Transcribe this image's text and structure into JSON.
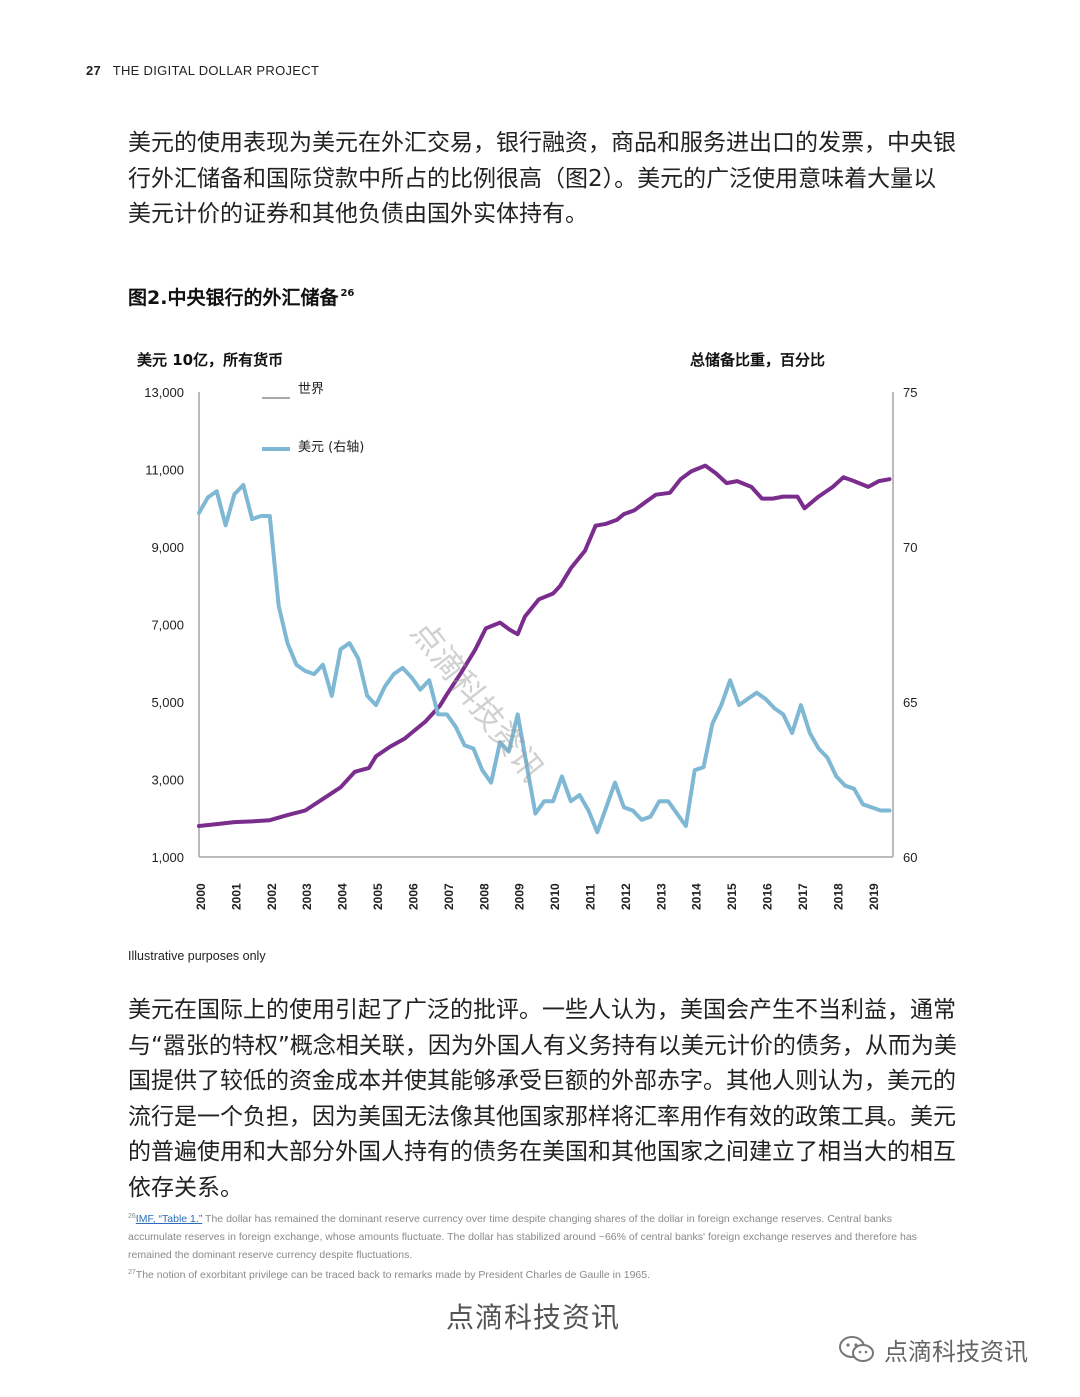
{
  "header": {
    "page_number": "27",
    "title": "THE DIGITAL DOLLAR PROJECT"
  },
  "paragraph1": "美元的使用表现为美元在外汇交易，银行融资，商品和服务进出口的发票，中央银行外汇储备和国际贷款中所占的比例很高（图2）。美元的广泛使用意味着大量以美元计价的证券和其他负债由国外实体持有。",
  "figure": {
    "title": "图2.中央银行的外汇储备",
    "footnote_ref": "26"
  },
  "illustrative_note": "Illustrative purposes only",
  "paragraph2": "美元在国际上的使用引起了广泛的批评。一些人认为，美国会产生不当利益，通常与“嚣张的特权”概念相关联，因为外国人有义务持有以美元计价的债务，从而为美国提供了较低的资金成本并使其能够承受巨额的外部赤字。其他人则认为，美元的流行是一个负担，因为美国无法像其他国家那样将汇率用作有效的政策工具。美元的普遍使用和大部分外国人持有的债务在美国和其他国家之间建立了相当大的相互依存关系。",
  "footnotes": {
    "fn26_num": "26",
    "fn26_link": "IMF, “Table 1.”",
    "fn26_text": " The dollar has remained the dominant reserve currency over time despite changing shares of the dollar in foreign exchange reserves. Central banks accumulate reserves in foreign exchange, whose amounts fluctuate. The dollar has stabilized around ~66% of central banks' foreign exchange reserves and therefore has remained the dominant reserve currency despite fluctuations.",
    "fn27_num": "27",
    "fn27_text": "The notion of exorbitant privilege can be traced back to remarks made by President Charles de Gaulle in 1965."
  },
  "watermarks": {
    "diagonal": "点滴科技资讯",
    "bottom": "点滴科技资讯",
    "wechat": "点滴科技资讯"
  },
  "colors": {
    "world": "#7b2d8e",
    "usd": "#7fb8d4",
    "axis": "#bbbbbb"
  },
  "chart_data": {
    "type": "line",
    "left_axis_title": "美元 10亿，所有货币",
    "right_axis_title": "总储备比重，百分比",
    "left_ylim": [
      1000,
      13000
    ],
    "right_ylim": [
      60,
      75
    ],
    "left_ticks": [
      "13,000",
      "11,000",
      "9,000",
      "7,000",
      "5,000",
      "3,000",
      "1,000"
    ],
    "right_ticks": [
      "75",
      "70",
      "65",
      "60"
    ],
    "x_ticks": [
      "2000",
      "2001",
      "2002",
      "2003",
      "2004",
      "2005",
      "2006",
      "2007",
      "2008",
      "2009",
      "2010",
      "2011",
      "2012",
      "2013",
      "2014",
      "2015",
      "2016",
      "2017",
      "2018",
      "2019"
    ],
    "legend": [
      {
        "name": "世界",
        "axis": "left"
      },
      {
        "name": "美元 (右轴)",
        "axis": "right"
      }
    ],
    "series": [
      {
        "name": "世界",
        "axis": "left",
        "points": [
          [
            2000.0,
            1800
          ],
          [
            2000.5,
            1850
          ],
          [
            2001.0,
            1900
          ],
          [
            2001.5,
            1920
          ],
          [
            2002.0,
            1950
          ],
          [
            2002.5,
            2080
          ],
          [
            2003.0,
            2200
          ],
          [
            2003.5,
            2500
          ],
          [
            2004.0,
            2800
          ],
          [
            2004.4,
            3200
          ],
          [
            2004.8,
            3300
          ],
          [
            2005.0,
            3600
          ],
          [
            2005.4,
            3850
          ],
          [
            2005.8,
            4050
          ],
          [
            2006.0,
            4200
          ],
          [
            2006.4,
            4500
          ],
          [
            2006.8,
            4900
          ],
          [
            2007.0,
            5200
          ],
          [
            2007.4,
            5750
          ],
          [
            2007.8,
            6350
          ],
          [
            2008.1,
            6900
          ],
          [
            2008.5,
            7050
          ],
          [
            2008.8,
            6850
          ],
          [
            2009.0,
            6750
          ],
          [
            2009.2,
            7200
          ],
          [
            2009.6,
            7650
          ],
          [
            2010.0,
            7800
          ],
          [
            2010.2,
            8000
          ],
          [
            2010.5,
            8450
          ],
          [
            2010.9,
            8900
          ],
          [
            2011.2,
            9550
          ],
          [
            2011.5,
            9600
          ],
          [
            2011.8,
            9700
          ],
          [
            2012.0,
            9850
          ],
          [
            2012.3,
            9950
          ],
          [
            2012.6,
            10150
          ],
          [
            2012.9,
            10350
          ],
          [
            2013.3,
            10400
          ],
          [
            2013.6,
            10750
          ],
          [
            2013.9,
            10950
          ],
          [
            2014.3,
            11100
          ],
          [
            2014.6,
            10900
          ],
          [
            2014.9,
            10650
          ],
          [
            2015.2,
            10700
          ],
          [
            2015.6,
            10550
          ],
          [
            2015.9,
            10250
          ],
          [
            2016.2,
            10250
          ],
          [
            2016.5,
            10300
          ],
          [
            2016.9,
            10300
          ],
          [
            2017.1,
            10000
          ],
          [
            2017.5,
            10300
          ],
          [
            2017.9,
            10550
          ],
          [
            2018.2,
            10800
          ],
          [
            2018.5,
            10700
          ],
          [
            2018.9,
            10550
          ],
          [
            2019.2,
            10700
          ],
          [
            2019.5,
            10750
          ]
        ]
      },
      {
        "name": "美元 (右轴)",
        "axis": "right",
        "points": [
          [
            2000.0,
            71.1
          ],
          [
            2000.25,
            71.6
          ],
          [
            2000.5,
            71.8
          ],
          [
            2000.75,
            70.7
          ],
          [
            2001.0,
            71.7
          ],
          [
            2001.25,
            72.0
          ],
          [
            2001.5,
            70.9
          ],
          [
            2001.75,
            71.0
          ],
          [
            2002.0,
            71.0
          ],
          [
            2002.25,
            68.1
          ],
          [
            2002.5,
            66.9
          ],
          [
            2002.75,
            66.2
          ],
          [
            2003.0,
            66.0
          ],
          [
            2003.25,
            65.9
          ],
          [
            2003.5,
            66.2
          ],
          [
            2003.75,
            65.2
          ],
          [
            2004.0,
            66.7
          ],
          [
            2004.25,
            66.9
          ],
          [
            2004.5,
            66.4
          ],
          [
            2004.75,
            65.2
          ],
          [
            2005.0,
            64.9
          ],
          [
            2005.25,
            65.5
          ],
          [
            2005.5,
            65.9
          ],
          [
            2005.75,
            66.1
          ],
          [
            2006.0,
            65.8
          ],
          [
            2006.25,
            65.4
          ],
          [
            2006.5,
            65.7
          ],
          [
            2006.75,
            64.6
          ],
          [
            2007.0,
            64.6
          ],
          [
            2007.25,
            64.2
          ],
          [
            2007.5,
            63.6
          ],
          [
            2007.75,
            63.5
          ],
          [
            2008.0,
            62.8
          ],
          [
            2008.25,
            62.4
          ],
          [
            2008.5,
            63.7
          ],
          [
            2008.75,
            63.4
          ],
          [
            2009.0,
            64.6
          ],
          [
            2009.25,
            63.0
          ],
          [
            2009.5,
            61.4
          ],
          [
            2009.75,
            61.8
          ],
          [
            2010.0,
            61.8
          ],
          [
            2010.25,
            62.6
          ],
          [
            2010.5,
            61.8
          ],
          [
            2010.75,
            62.0
          ],
          [
            2011.0,
            61.5
          ],
          [
            2011.25,
            60.8
          ],
          [
            2011.5,
            61.6
          ],
          [
            2011.75,
            62.4
          ],
          [
            2012.0,
            61.6
          ],
          [
            2012.25,
            61.5
          ],
          [
            2012.5,
            61.2
          ],
          [
            2012.75,
            61.3
          ],
          [
            2013.0,
            61.8
          ],
          [
            2013.25,
            61.8
          ],
          [
            2013.5,
            61.4
          ],
          [
            2013.75,
            61.0
          ],
          [
            2014.0,
            62.8
          ],
          [
            2014.25,
            62.9
          ],
          [
            2014.5,
            64.3
          ],
          [
            2014.75,
            64.9
          ],
          [
            2015.0,
            65.7
          ],
          [
            2015.25,
            64.9
          ],
          [
            2015.5,
            65.1
          ],
          [
            2015.75,
            65.3
          ],
          [
            2016.0,
            65.1
          ],
          [
            2016.25,
            64.8
          ],
          [
            2016.5,
            64.6
          ],
          [
            2016.75,
            64.0
          ],
          [
            2017.0,
            64.9
          ],
          [
            2017.25,
            64.0
          ],
          [
            2017.5,
            63.5
          ],
          [
            2017.75,
            63.2
          ],
          [
            2018.0,
            62.6
          ],
          [
            2018.25,
            62.3
          ],
          [
            2018.5,
            62.2
          ],
          [
            2018.75,
            61.7
          ],
          [
            2019.0,
            61.6
          ],
          [
            2019.25,
            61.5
          ],
          [
            2019.5,
            61.5
          ]
        ]
      }
    ]
  }
}
